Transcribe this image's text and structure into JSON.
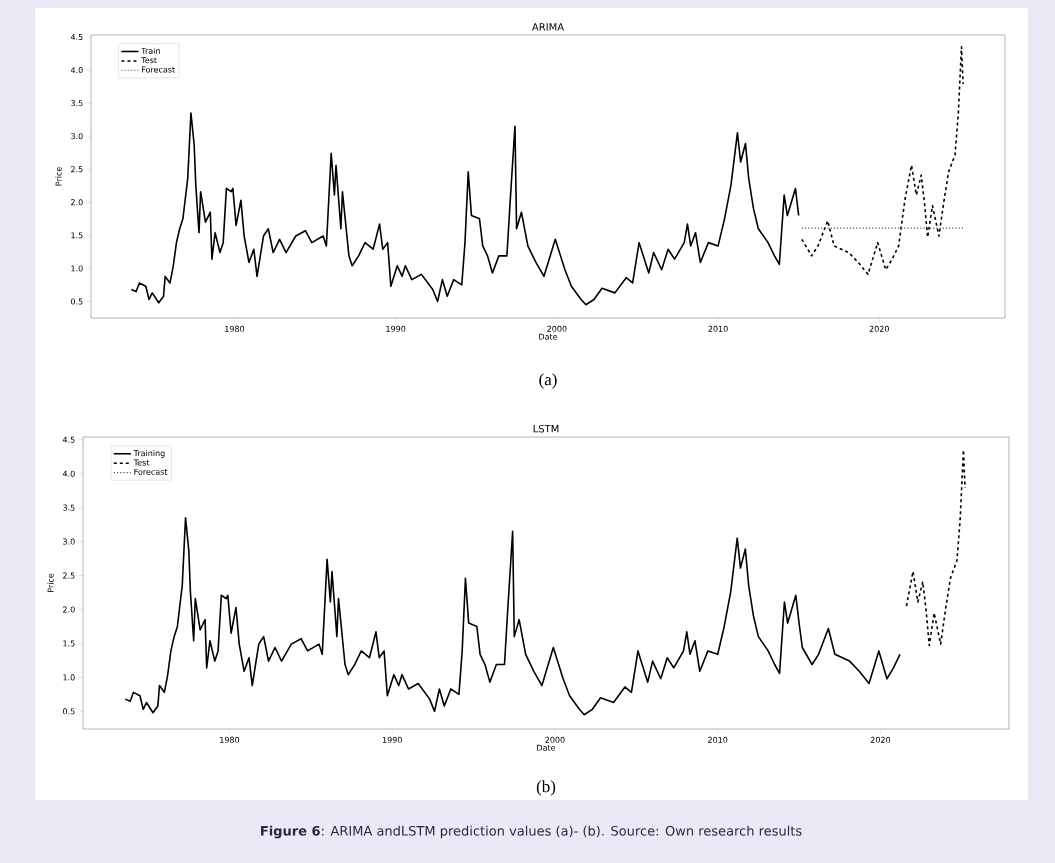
{
  "chart_data": [
    {
      "type": "line",
      "title": "ARIMA",
      "xlabel": "Date",
      "ylabel": "Price",
      "xlim": [
        1971.1,
        2027.8
      ],
      "ylim": [
        0.25,
        4.53
      ],
      "xticks": [
        1980,
        1990,
        2000,
        2010,
        2020
      ],
      "legend": "top left",
      "annotations": [
        "(a)"
      ],
      "yticks": [
        0.5,
        {
          "value": 1.0,
          "label": "1.0"
        },
        1.5,
        {
          "value": 2.0,
          "label": "2.0"
        },
        2.5,
        {
          "value": 3.0,
          "label": "3.0"
        },
        3.5,
        {
          "value": 4.0,
          "label": "4.0"
        },
        4.5
      ],
      "series": [
        {
          "name": "Train",
          "color": "#000000",
          "line_style": "solid",
          "x": [
            1973.6,
            1973.9,
            1974.1,
            1974.5,
            1974.7,
            1974.9,
            1975.3,
            1975.6,
            1975.7,
            1976.0,
            1976.2,
            1976.4,
            1976.6,
            1976.8,
            1977.1,
            1977.3,
            1977.5,
            1977.6,
            1977.8,
            1977.9,
            1978.2,
            1978.5,
            1978.6,
            1978.8,
            1979.1,
            1979.3,
            1979.5,
            1979.8,
            1979.9,
            1980.1,
            1980.4,
            1980.6,
            1980.9,
            1981.2,
            1981.4,
            1981.8,
            1982.1,
            1982.4,
            1982.8,
            1983.2,
            1983.8,
            1984.4,
            1984.8,
            1985.5,
            1985.7,
            1986.0,
            1986.2,
            1986.3,
            1986.6,
            1986.7,
            1987.1,
            1987.3,
            1987.7,
            1988.1,
            1988.6,
            1989.0,
            1989.2,
            1989.5,
            1989.7,
            1990.1,
            1990.4,
            1990.6,
            1991.0,
            1991.6,
            1992.3,
            1992.6,
            1992.9,
            1993.2,
            1993.6,
            1994.1,
            1994.3,
            1994.5,
            1994.7,
            1995.2,
            1995.4,
            1995.7,
            1996.0,
            1996.4,
            1996.9,
            1997.1,
            1997.4,
            1997.5,
            1997.8,
            1998.2,
            1998.7,
            1999.2,
            1999.9,
            2000.5,
            2000.9,
            2001.5,
            2001.8,
            2002.3,
            2002.8,
            2003.6,
            2004.3,
            2004.7,
            2005.1,
            2005.7,
            2006.0,
            2006.5,
            2006.9,
            2007.3,
            2007.9,
            2008.1,
            2008.3,
            2008.6,
            2008.9,
            2009.4,
            2010.0,
            2010.4,
            2010.8,
            2011.2,
            2011.4,
            2011.7,
            2011.9,
            2012.2,
            2012.5,
            2013.1,
            2013.5,
            2013.8,
            2014.1,
            2014.3,
            2014.8,
            2015.0
          ],
          "values": [
            0.68,
            0.65,
            0.78,
            0.73,
            0.53,
            0.63,
            0.48,
            0.58,
            0.88,
            0.78,
            1.03,
            1.39,
            1.6,
            1.75,
            2.36,
            3.35,
            2.87,
            2.26,
            1.54,
            2.16,
            1.7,
            1.85,
            1.14,
            1.54,
            1.24,
            1.39,
            2.21,
            2.16,
            2.21,
            1.65,
            2.03,
            1.49,
            1.09,
            1.29,
            0.88,
            1.49,
            1.6,
            1.24,
            1.44,
            1.24,
            1.49,
            1.57,
            1.39,
            1.49,
            1.34,
            2.74,
            2.11,
            2.56,
            1.6,
            2.16,
            1.19,
            1.04,
            1.19,
            1.39,
            1.29,
            1.67,
            1.29,
            1.39,
            0.73,
            1.04,
            0.88,
            1.04,
            0.83,
            0.91,
            0.68,
            0.5,
            0.83,
            0.58,
            0.83,
            0.75,
            1.39,
            2.46,
            1.8,
            1.75,
            1.34,
            1.19,
            0.93,
            1.19,
            1.19,
            2.0,
            3.15,
            1.6,
            1.85,
            1.34,
            1.09,
            0.88,
            1.44,
            0.98,
            0.73,
            0.53,
            0.45,
            0.53,
            0.7,
            0.63,
            0.86,
            0.78,
            1.39,
            0.93,
            1.24,
            0.98,
            1.29,
            1.14,
            1.39,
            1.67,
            1.34,
            1.54,
            1.09,
            1.39,
            1.34,
            1.75,
            2.26,
            3.05,
            2.61,
            2.89,
            2.36,
            1.9,
            1.6,
            1.39,
            1.19,
            1.06,
            2.11,
            1.8,
            2.21,
            1.8
          ]
        },
        {
          "name": "Test",
          "color": "#000000",
          "line_style": "dashed",
          "x": [
            2015.2,
            2015.8,
            2016.2,
            2016.8,
            2017.2,
            2018.1,
            2018.7,
            2019.3,
            2019.9,
            2020.4,
            2020.8,
            2021.2,
            2021.6,
            2022.0,
            2022.3,
            2022.6,
            2022.8,
            2023.0,
            2023.3,
            2023.7,
            2024.0,
            2024.3,
            2024.7,
            2024.9,
            2025.1,
            2025.2
          ],
          "values": [
            1.44,
            1.19,
            1.34,
            1.72,
            1.34,
            1.24,
            1.09,
            0.91,
            1.39,
            0.98,
            1.14,
            1.34,
            2.05,
            2.56,
            2.11,
            2.41,
            2.0,
            1.47,
            1.95,
            1.49,
            2.0,
            2.46,
            2.72,
            3.33,
            4.35,
            3.79
          ]
        },
        {
          "name": "Forecast",
          "color": "#555555",
          "line_style": "dotted",
          "x": [
            2015.2,
            2025.2
          ],
          "values": [
            1.61,
            1.61
          ]
        }
      ]
    },
    {
      "type": "line",
      "title": "LSTM",
      "xlabel": "Date",
      "ylabel": "Price",
      "xlim": [
        1971.0,
        2027.9
      ],
      "ylim": [
        0.24,
        4.54
      ],
      "xticks": [
        1980,
        1990,
        2000,
        2010,
        2020
      ],
      "yticks": [
        0.5,
        {
          "value": 1.0,
          "label": "1.0"
        },
        1.5,
        {
          "value": 2.0,
          "label": "2.0"
        },
        2.5,
        {
          "value": 3.0,
          "label": "3.0"
        },
        3.5,
        {
          "value": 4.0,
          "label": "4.0"
        },
        4.5
      ],
      "legend": "top left",
      "annotations": [
        "(b)",
        "**Figure 6**: ARIMA andLSTM prediction values (a)- (b). Source: Own research results"
      ],
      "series": [
        {
          "name": "Training",
          "color": "#000000",
          "line_style": "solid",
          "x": [
            1973.6,
            1973.9,
            1974.1,
            1974.5,
            1974.7,
            1974.9,
            1975.3,
            1975.6,
            1975.7,
            1976.0,
            1976.2,
            1976.4,
            1976.6,
            1976.8,
            1977.1,
            1977.3,
            1977.5,
            1977.6,
            1977.8,
            1977.9,
            1978.2,
            1978.5,
            1978.6,
            1978.8,
            1979.1,
            1979.3,
            1979.5,
            1979.8,
            1979.9,
            1980.1,
            1980.4,
            1980.6,
            1980.9,
            1981.2,
            1981.4,
            1981.8,
            1982.1,
            1982.4,
            1982.8,
            1983.2,
            1983.8,
            1984.4,
            1984.8,
            1985.5,
            1985.7,
            1986.0,
            1986.2,
            1986.3,
            1986.6,
            1986.7,
            1987.1,
            1987.3,
            1987.7,
            1988.1,
            1988.6,
            1989.0,
            1989.2,
            1989.5,
            1989.7,
            1990.1,
            1990.4,
            1990.6,
            1991.0,
            1991.6,
            1992.3,
            1992.6,
            1992.9,
            1993.2,
            1993.6,
            1994.1,
            1994.3,
            1994.5,
            1994.7,
            1995.2,
            1995.4,
            1995.7,
            1996.0,
            1996.4,
            1996.9,
            1997.1,
            1997.4,
            1997.5,
            1997.8,
            1998.2,
            1998.7,
            1999.2,
            1999.9,
            2000.5,
            2000.9,
            2001.5,
            2001.8,
            2002.3,
            2002.8,
            2003.6,
            2004.3,
            2004.7,
            2005.1,
            2005.7,
            2006.0,
            2006.5,
            2006.9,
            2007.3,
            2007.9,
            2008.1,
            2008.3,
            2008.6,
            2008.9,
            2009.4,
            2010.0,
            2010.4,
            2010.8,
            2011.2,
            2011.4,
            2011.7,
            2011.9,
            2012.2,
            2012.5,
            2013.1,
            2013.5,
            2013.8,
            2014.1,
            2014.3,
            2014.8,
            2015.0,
            2015.2,
            2015.8,
            2016.2,
            2016.8,
            2017.2,
            2018.1,
            2018.7,
            2019.3,
            2019.9,
            2020.4,
            2020.8,
            2021.2
          ],
          "values": [
            0.68,
            0.65,
            0.78,
            0.73,
            0.53,
            0.63,
            0.48,
            0.58,
            0.88,
            0.78,
            1.03,
            1.39,
            1.6,
            1.75,
            2.36,
            3.35,
            2.87,
            2.26,
            1.54,
            2.16,
            1.7,
            1.85,
            1.14,
            1.54,
            1.24,
            1.39,
            2.21,
            2.16,
            2.21,
            1.65,
            2.03,
            1.49,
            1.09,
            1.29,
            0.88,
            1.49,
            1.6,
            1.24,
            1.44,
            1.24,
            1.49,
            1.57,
            1.39,
            1.49,
            1.34,
            2.74,
            2.11,
            2.56,
            1.6,
            2.16,
            1.19,
            1.04,
            1.19,
            1.39,
            1.29,
            1.67,
            1.29,
            1.39,
            0.73,
            1.04,
            0.88,
            1.04,
            0.83,
            0.91,
            0.68,
            0.5,
            0.83,
            0.58,
            0.83,
            0.75,
            1.39,
            2.46,
            1.8,
            1.75,
            1.34,
            1.19,
            0.93,
            1.19,
            1.19,
            2.0,
            3.15,
            1.6,
            1.85,
            1.34,
            1.09,
            0.88,
            1.44,
            0.98,
            0.73,
            0.53,
            0.45,
            0.53,
            0.7,
            0.63,
            0.86,
            0.78,
            1.39,
            0.93,
            1.24,
            0.98,
            1.29,
            1.14,
            1.39,
            1.67,
            1.34,
            1.54,
            1.09,
            1.39,
            1.34,
            1.75,
            2.26,
            3.05,
            2.61,
            2.89,
            2.36,
            1.9,
            1.6,
            1.39,
            1.19,
            1.06,
            2.11,
            1.8,
            2.21,
            1.8,
            1.44,
            1.19,
            1.34,
            1.72,
            1.34,
            1.24,
            1.09,
            0.91,
            1.39,
            0.98,
            1.14,
            1.34
          ]
        },
        {
          "name": "Test",
          "color": "#000000",
          "line_style": "dashed",
          "x": [
            2021.6,
            2022.0,
            2022.3,
            2022.6,
            2022.8,
            2023.0,
            2023.3,
            2023.7,
            2024.0,
            2024.3,
            2024.7,
            2024.9,
            2025.1,
            2025.2
          ],
          "values": [
            2.05,
            2.56,
            2.11,
            2.41,
            2.0,
            1.47,
            1.95,
            1.49,
            2.0,
            2.46,
            2.72,
            3.33,
            4.35,
            3.79
          ]
        },
        {
          "name": "Forecast",
          "color": "#555555",
          "line_style": "dotted"
        }
      ]
    }
  ]
}
